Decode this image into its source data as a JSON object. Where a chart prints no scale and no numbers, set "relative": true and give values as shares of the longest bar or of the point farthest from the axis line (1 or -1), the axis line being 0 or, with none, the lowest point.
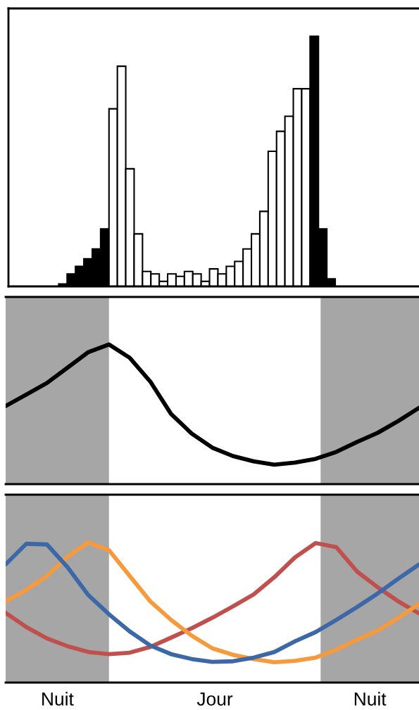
{
  "chart_data": [
    {
      "type": "bar",
      "relative": true,
      "categories": [
        null,
        null,
        null,
        null,
        null,
        null,
        null,
        null,
        null,
        null,
        null,
        null,
        null,
        null,
        null,
        null,
        null,
        null,
        null,
        null,
        null,
        null,
        null,
        null,
        null,
        null,
        null,
        null,
        null,
        null,
        null,
        null,
        null
      ],
      "values": [
        0.01,
        0.05,
        0.08,
        0.11,
        0.15,
        0.23,
        0.71,
        0.88,
        0.47,
        0.21,
        0.06,
        0.05,
        0.02,
        0.05,
        0.04,
        0.06,
        0.05,
        0.02,
        0.07,
        0.05,
        0.08,
        0.1,
        0.15,
        0.21,
        0.3,
        0.54,
        0.62,
        0.68,
        0.79,
        0.79,
        1,
        0.23,
        0.03
      ],
      "colors": [
        "#000000",
        "#000000",
        "#000000",
        "#000000",
        "#000000",
        "#000000",
        "#ffffff",
        "#ffffff",
        "#ffffff",
        "#ffffff",
        "#ffffff",
        "#ffffff",
        "#ffffff",
        "#ffffff",
        "#ffffff",
        "#ffffff",
        "#ffffff",
        "#ffffff",
        "#ffffff",
        "#ffffff",
        "#ffffff",
        "#ffffff",
        "#ffffff",
        "#ffffff",
        "#ffffff",
        "#ffffff",
        "#ffffff",
        "#ffffff",
        "#ffffff",
        "#ffffff",
        "#000000",
        "#000000",
        "#000000"
      ]
    },
    {
      "type": "line",
      "relative": true,
      "categories": [
        null,
        null,
        null,
        null,
        null,
        null,
        null,
        null,
        null,
        null,
        null,
        null,
        null,
        null,
        null,
        null,
        null,
        null,
        null,
        null,
        null
      ],
      "series": [
        {
          "color": "#000000",
          "values": [
            0.559,
            0.641,
            0.724,
            0.834,
            0.945,
            1,
            0.905,
            0.734,
            0.503,
            0.362,
            0.261,
            0.201,
            0.163,
            0.139,
            0.154,
            0.181,
            0.231,
            0.302,
            0.367,
            0.452,
            0.546
          ]
        }
      ]
    },
    {
      "type": "line",
      "relative": true,
      "categories": [
        null,
        null,
        null,
        null,
        null,
        null,
        null,
        null,
        null,
        null,
        null,
        null,
        null,
        null,
        null,
        null,
        null,
        null,
        null,
        null,
        null
      ],
      "annotations": [
        "Nuit",
        "Jour",
        "Nuit"
      ],
      "series": [
        {
          "color": "#c0504d",
          "values": [
            0.497,
            0.396,
            0.315,
            0.259,
            0.218,
            0.203,
            0.213,
            0.254,
            0.32,
            0.387,
            0.462,
            0.543,
            0.629,
            0.751,
            0.893,
            0.995,
            0.966,
            0.792,
            0.68,
            0.579,
            0.493
          ]
        },
        {
          "color": "#f79a3c",
          "values": [
            0.58,
            0.66,
            0.761,
            0.898,
            1,
            0.944,
            0.761,
            0.579,
            0.447,
            0.335,
            0.244,
            0.198,
            0.168,
            0.145,
            0.155,
            0.178,
            0.234,
            0.305,
            0.371,
            0.462,
            0.56
          ]
        },
        {
          "color": "#3c68a8",
          "values": [
            0.843,
            0.99,
            0.985,
            0.822,
            0.624,
            0.487,
            0.365,
            0.264,
            0.203,
            0.168,
            0.147,
            0.152,
            0.178,
            0.218,
            0.294,
            0.36,
            0.447,
            0.538,
            0.635,
            0.741,
            0.842
          ]
        }
      ]
    }
  ]
}
